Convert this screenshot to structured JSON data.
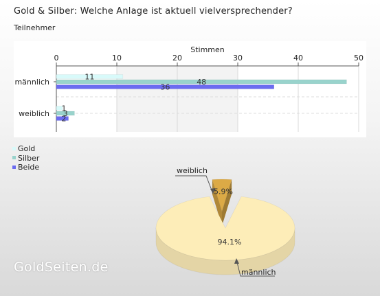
{
  "page": {
    "title": "Gold & Silber: Welche Anlage ist aktuell vielversprechender?",
    "subtitle": "Teilnehmer",
    "watermark": "GoldSeiten.de"
  },
  "chart_data": [
    {
      "type": "bar",
      "orientation": "horizontal",
      "xlabel": "Stimmen",
      "xlim": [
        0,
        50
      ],
      "xticks": [
        "0",
        "10",
        "20",
        "30",
        "40",
        "50"
      ],
      "categories": [
        "männlich",
        "weiblich"
      ],
      "series": [
        {
          "name": "Gold",
          "color": "#d8fafa",
          "values": [
            11,
            1
          ]
        },
        {
          "name": "Silber",
          "color": "#99d3cc",
          "values": [
            48,
            3
          ]
        },
        {
          "name": "Beide",
          "color": "#6b6bf0",
          "values": [
            36,
            2
          ]
        }
      ],
      "grid": true,
      "legend": "bottom-left"
    },
    {
      "type": "pie",
      "slices": [
        {
          "label": "männlich",
          "value": 94.1,
          "value_label": "94.1%",
          "color": "#fdedb8"
        },
        {
          "label": "weiblich",
          "value": 5.9,
          "value_label": "5.9%",
          "color": "#dcaa46"
        }
      ]
    }
  ]
}
